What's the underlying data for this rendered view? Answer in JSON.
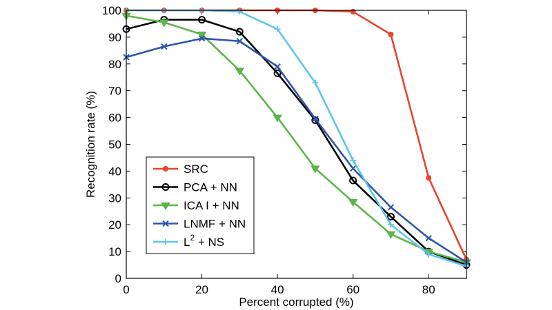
{
  "chart_data": {
    "type": "line",
    "xlabel": "Percent corrupted (%)",
    "ylabel": "Recognition rate (%)",
    "xlim": [
      0,
      90
    ],
    "ylim": [
      0,
      100
    ],
    "xticks": [
      0,
      20,
      40,
      60,
      80
    ],
    "yticks": [
      0,
      10,
      20,
      30,
      40,
      50,
      60,
      70,
      80,
      90,
      100
    ],
    "x": [
      0,
      10,
      20,
      30,
      40,
      50,
      60,
      70,
      80,
      90
    ],
    "legend_position": "center-left",
    "series": [
      {
        "name": "SRC",
        "legend_main": "SRC",
        "legend_sup": "",
        "legend_tail": "",
        "color": "#e8432c",
        "marker": "dot",
        "values": [
          100,
          100,
          100,
          100,
          100,
          100,
          99.5,
          91,
          37.5,
          7
        ]
      },
      {
        "name": "PCA + NN",
        "legend_main": "PCA + NN",
        "legend_sup": "",
        "legend_tail": "",
        "color": "#000000",
        "marker": "circle",
        "values": [
          93,
          96.5,
          96.5,
          92,
          76.5,
          59,
          36.5,
          23,
          10,
          5
        ]
      },
      {
        "name": "ICA I + NN",
        "legend_main": "ICA I + NN",
        "legend_sup": "",
        "legend_tail": "",
        "color": "#5bb54a",
        "marker": "triangle",
        "values": [
          98,
          95.5,
          91,
          77.5,
          60,
          41,
          28.5,
          16.5,
          10,
          6
        ]
      },
      {
        "name": "LNMF + NN",
        "legend_main": "LNMF + NN",
        "legend_sup": "",
        "legend_tail": "",
        "color": "#2d55a8",
        "marker": "x",
        "values": [
          82.5,
          86.5,
          89.5,
          88.5,
          79,
          59.5,
          41,
          26.5,
          15,
          6
        ]
      },
      {
        "name": "L2 + NS",
        "legend_main": "L",
        "legend_sup": "2",
        "legend_tail": " + NS",
        "color": "#5cc6ea",
        "marker": "plus",
        "values": [
          100,
          100,
          100,
          99.5,
          93,
          73,
          44,
          20,
          9,
          4.5
        ]
      }
    ]
  }
}
